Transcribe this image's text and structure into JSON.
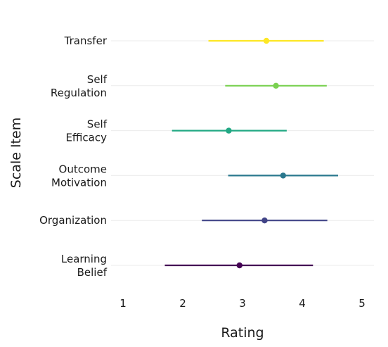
{
  "chart_data": {
    "type": "errorbar",
    "orientation": "horizontal",
    "xlabel": "Rating",
    "ylabel": "Scale Item",
    "xlim": [
      0.8,
      5.2
    ],
    "xticks": [
      "1",
      "2",
      "3",
      "4",
      "5"
    ],
    "grid": "horizontal-major",
    "legend": "none",
    "items": [
      {
        "label": [
          "Transfer"
        ],
        "mean": 3.4,
        "low": 2.43,
        "high": 4.36,
        "color": "#FDE725"
      },
      {
        "label": [
          "Self",
          "Regulation"
        ],
        "mean": 3.56,
        "low": 2.71,
        "high": 4.41,
        "color": "#7AD151"
      },
      {
        "label": [
          "Self",
          "Efficacy"
        ],
        "mean": 2.77,
        "low": 1.82,
        "high": 3.74,
        "color": "#22A884"
      },
      {
        "label": [
          "Outcome",
          "Motivation"
        ],
        "mean": 3.68,
        "low": 2.76,
        "high": 4.6,
        "color": "#2A788E"
      },
      {
        "label": [
          "Organization"
        ],
        "mean": 3.37,
        "low": 2.32,
        "high": 4.42,
        "color": "#414487"
      },
      {
        "label": [
          "Learning",
          "Belief"
        ],
        "mean": 2.95,
        "low": 1.7,
        "high": 4.18,
        "color": "#440154"
      }
    ]
  }
}
